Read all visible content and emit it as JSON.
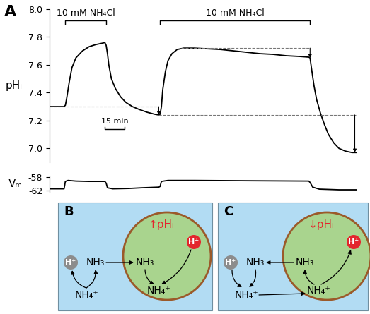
{
  "chart_data": [
    {
      "type": "line",
      "title": "A",
      "y_label": "pHᵢ",
      "color": "#000000",
      "x": [
        0,
        5,
        11,
        12,
        13,
        15,
        17,
        20,
        25,
        30,
        35,
        40,
        42,
        43,
        44,
        45,
        47,
        50,
        54,
        58,
        63,
        68,
        74,
        80,
        83,
        84,
        85,
        86,
        88,
        90,
        93,
        97,
        102,
        110,
        120,
        130,
        140,
        150,
        160,
        170,
        180,
        190,
        197,
        198,
        199,
        201,
        203,
        206,
        209,
        212,
        216,
        220,
        225,
        230,
        233
      ],
      "values": [
        7.3,
        7.3,
        7.3,
        7.31,
        7.36,
        7.48,
        7.58,
        7.65,
        7.7,
        7.73,
        7.745,
        7.755,
        7.76,
        7.74,
        7.68,
        7.6,
        7.5,
        7.43,
        7.37,
        7.33,
        7.3,
        7.28,
        7.26,
        7.245,
        7.24,
        7.245,
        7.3,
        7.42,
        7.55,
        7.63,
        7.68,
        7.71,
        7.72,
        7.72,
        7.715,
        7.71,
        7.7,
        7.69,
        7.68,
        7.675,
        7.665,
        7.66,
        7.655,
        7.65,
        7.58,
        7.45,
        7.35,
        7.25,
        7.17,
        7.1,
        7.04,
        7.0,
        6.98,
        6.97,
        6.97
      ],
      "xlim": [
        0,
        234
      ],
      "ylim": [
        6.9,
        8.0
      ],
      "yticks": [
        {
          "value": 7.0,
          "label": "7.0"
        },
        7.2,
        7.4,
        7.6,
        7.8,
        {
          "value": 8.0,
          "label": "8.0"
        }
      ],
      "tick_labels": "y",
      "annotations": [
        {
          "text": "10 mM NH₄Cl",
          "x_start": 12,
          "x_end": 43
        },
        {
          "text": "10 mM NH₄Cl",
          "x_start": 84,
          "x_end": 198
        }
      ],
      "scale_bar": {
        "label": "15 min",
        "x_start": 42,
        "length": 15
      },
      "reference_lines": [
        {
          "y": 7.3,
          "x_start": 0,
          "x_end": 83
        },
        {
          "y": 7.24,
          "x_start": 83,
          "x_end": 233
        },
        {
          "y": 7.72,
          "x_start": 100,
          "x_end": 198
        }
      ],
      "arrows": [
        {
          "x": 83,
          "y_start": 7.3,
          "y_end": 7.24
        },
        {
          "x": 198,
          "y_start": 7.72,
          "y_end": 7.65
        },
        {
          "x": 232,
          "y_start": 7.24,
          "y_end": 6.97
        }
      ]
    },
    {
      "type": "line",
      "y_label": "Vₘ",
      "color": "#000000",
      "x": [
        0,
        11,
        12,
        14,
        20,
        30,
        42,
        43,
        44,
        48,
        60,
        70,
        83,
        84,
        85,
        90,
        110,
        150,
        197,
        198,
        200,
        205,
        220,
        233
      ],
      "values": [
        -61.5,
        -61.5,
        -59.3,
        -59.0,
        -59.2,
        -59.3,
        -59.3,
        -59.8,
        -61.2,
        -61.5,
        -61.4,
        -61.2,
        -61.0,
        -60.8,
        -59.3,
        -59.0,
        -59.0,
        -59.1,
        -59.2,
        -59.6,
        -61.0,
        -61.6,
        -61.8,
        -61.8
      ],
      "xlim": [
        0,
        234
      ],
      "ylim": [
        -62.5,
        -57.5
      ],
      "yticks": [
        -62,
        -58
      ],
      "tick_labels": "y"
    }
  ],
  "diagrams": [
    {
      "label": "B",
      "pH_change": "↑pHᵢ",
      "outside": {
        "proton": "H⁺",
        "base": "NH₃",
        "acid": "NH₄⁺"
      },
      "inside": {
        "proton": "H⁺",
        "base": "NH₃",
        "acid": "NH₄⁺"
      }
    },
    {
      "label": "C",
      "pH_change": "↓pHᵢ",
      "outside": {
        "proton": "H⁺",
        "base": "NH₃",
        "acid": "NH₄⁺"
      },
      "inside": {
        "proton": "H⁺",
        "base": "NH₃",
        "acid": "NH₄⁺"
      }
    }
  ]
}
